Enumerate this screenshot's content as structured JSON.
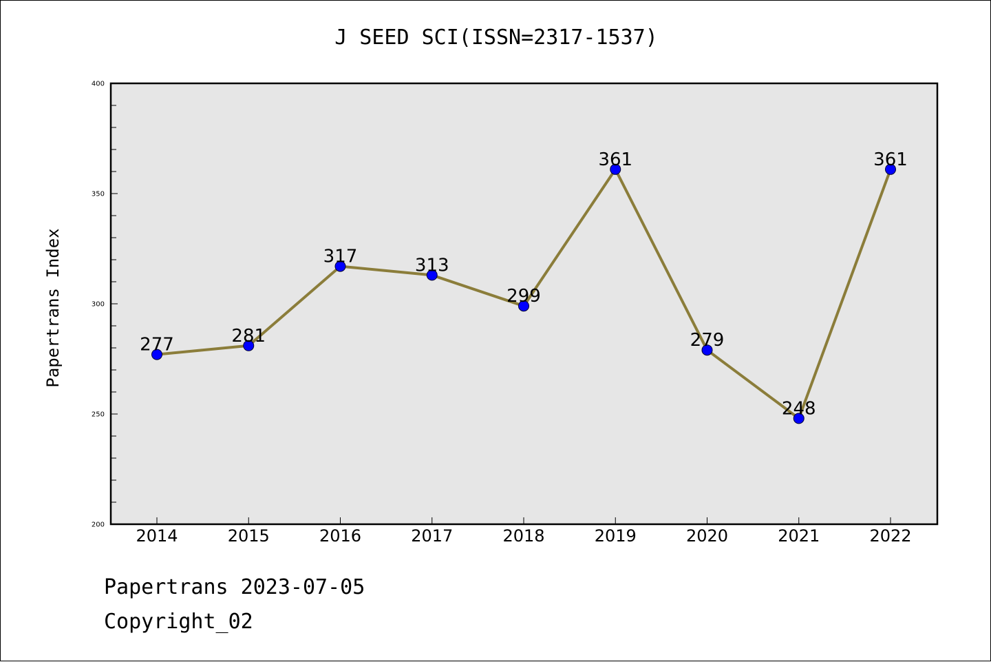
{
  "chart_data": {
    "type": "line",
    "title": "J SEED SCI(ISSN=2317-1537)",
    "xlabel": "",
    "ylabel": "Papertrans Index",
    "categories": [
      "2014",
      "2015",
      "2016",
      "2017",
      "2018",
      "2019",
      "2020",
      "2021",
      "2022"
    ],
    "series": [
      {
        "values": [
          277,
          281,
          317,
          313,
          299,
          361,
          279,
          248,
          361
        ],
        "line_color": "#8b7d3a",
        "marker_color": "#0000ff"
      }
    ],
    "data_labels": [
      "277",
      "281",
      "317",
      "313",
      "299",
      "361",
      "279",
      "248",
      "361"
    ],
    "ylim": [
      200,
      400
    ],
    "yticks": [
      "200",
      "250",
      "300",
      "350",
      "400"
    ],
    "grid": false,
    "plot_background": "#e6e6e6"
  },
  "footer": {
    "date_text": "Papertrans 2023-07-05",
    "copyright_text": "Copyright_02"
  }
}
